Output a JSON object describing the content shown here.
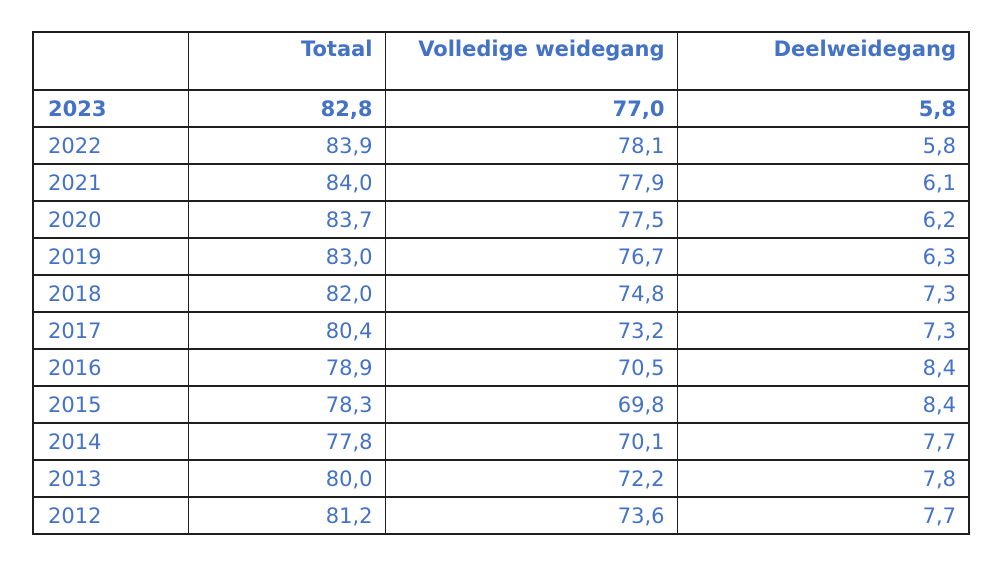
{
  "colors": {
    "text_blue": "#4472c4",
    "border": "#1f1f1f",
    "background": "#ffffff"
  },
  "chart_data": {
    "type": "table",
    "title": "",
    "columns": [
      "",
      "Totaal",
      "Volledige weidegang",
      "Deelweidegang"
    ],
    "decimal_style": "comma",
    "highlighted_row": "2023",
    "rows": [
      [
        "2023",
        "82,8",
        "77,0",
        "5,8"
      ],
      [
        "2022",
        "83,9",
        "78,1",
        "5,8"
      ],
      [
        "2021",
        "84,0",
        "77,9",
        "6,1"
      ],
      [
        "2020",
        "83,7",
        "77,5",
        "6,2"
      ],
      [
        "2019",
        "83,0",
        "76,7",
        "6,3"
      ],
      [
        "2018",
        "82,0",
        "74,8",
        "7,3"
      ],
      [
        "2017",
        "80,4",
        "73,2",
        "7,3"
      ],
      [
        "2016",
        "78,9",
        "70,5",
        "8,4"
      ],
      [
        "2015",
        "78,3",
        "69,8",
        "8,4"
      ],
      [
        "2014",
        "77,8",
        "70,1",
        "7,7"
      ],
      [
        "2013",
        "80,0",
        "72,2",
        "7,8"
      ],
      [
        "2012",
        "81,2",
        "73,6",
        "7,7"
      ]
    ]
  }
}
